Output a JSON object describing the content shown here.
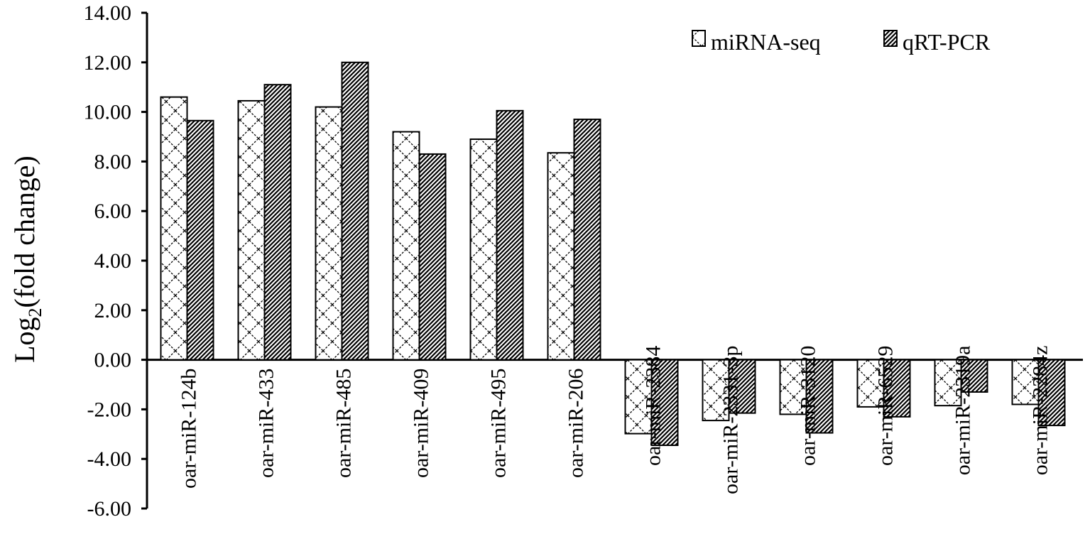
{
  "chart_data": {
    "type": "bar",
    "ylabel_main": "Log",
    "ylabel_sub": "2",
    "ylabel_tail": "(fold change)",
    "ylim": [
      -6,
      14
    ],
    "yticks": [
      -6,
      -4,
      -2,
      0,
      2,
      4,
      6,
      8,
      10,
      12,
      14
    ],
    "ytick_labels": [
      "-6.00",
      "-4.00",
      "-2.00",
      "0.00",
      "2.00",
      "4.00",
      "6.00",
      "8.00",
      "10.00",
      "12.00",
      "14.00"
    ],
    "legend_position": "top-right",
    "categories": [
      "oar-miR-124b",
      "oar-miR-433",
      "oar-miR-485",
      "oar-miR-409",
      "oar-miR-495",
      "oar-miR-206",
      "oar-miR-2384",
      "oar-miR-2331-3p",
      "oar-miR-3120",
      "oar-miR-6529",
      "oar-miR-2319a",
      "oar-miR-2284z"
    ],
    "series": [
      {
        "name": "miRNA-seq",
        "pattern": "zigzag",
        "values": [
          10.6,
          10.45,
          10.2,
          9.2,
          8.9,
          8.35,
          -2.98,
          -2.45,
          -2.2,
          -1.9,
          -1.85,
          -1.8
        ]
      },
      {
        "name": "qRT-PCR",
        "pattern": "diagonal-dense",
        "values": [
          9.65,
          11.1,
          12.0,
          8.3,
          10.05,
          9.7,
          -3.45,
          -2.15,
          -2.95,
          -2.3,
          -1.3,
          -2.65
        ]
      }
    ]
  }
}
